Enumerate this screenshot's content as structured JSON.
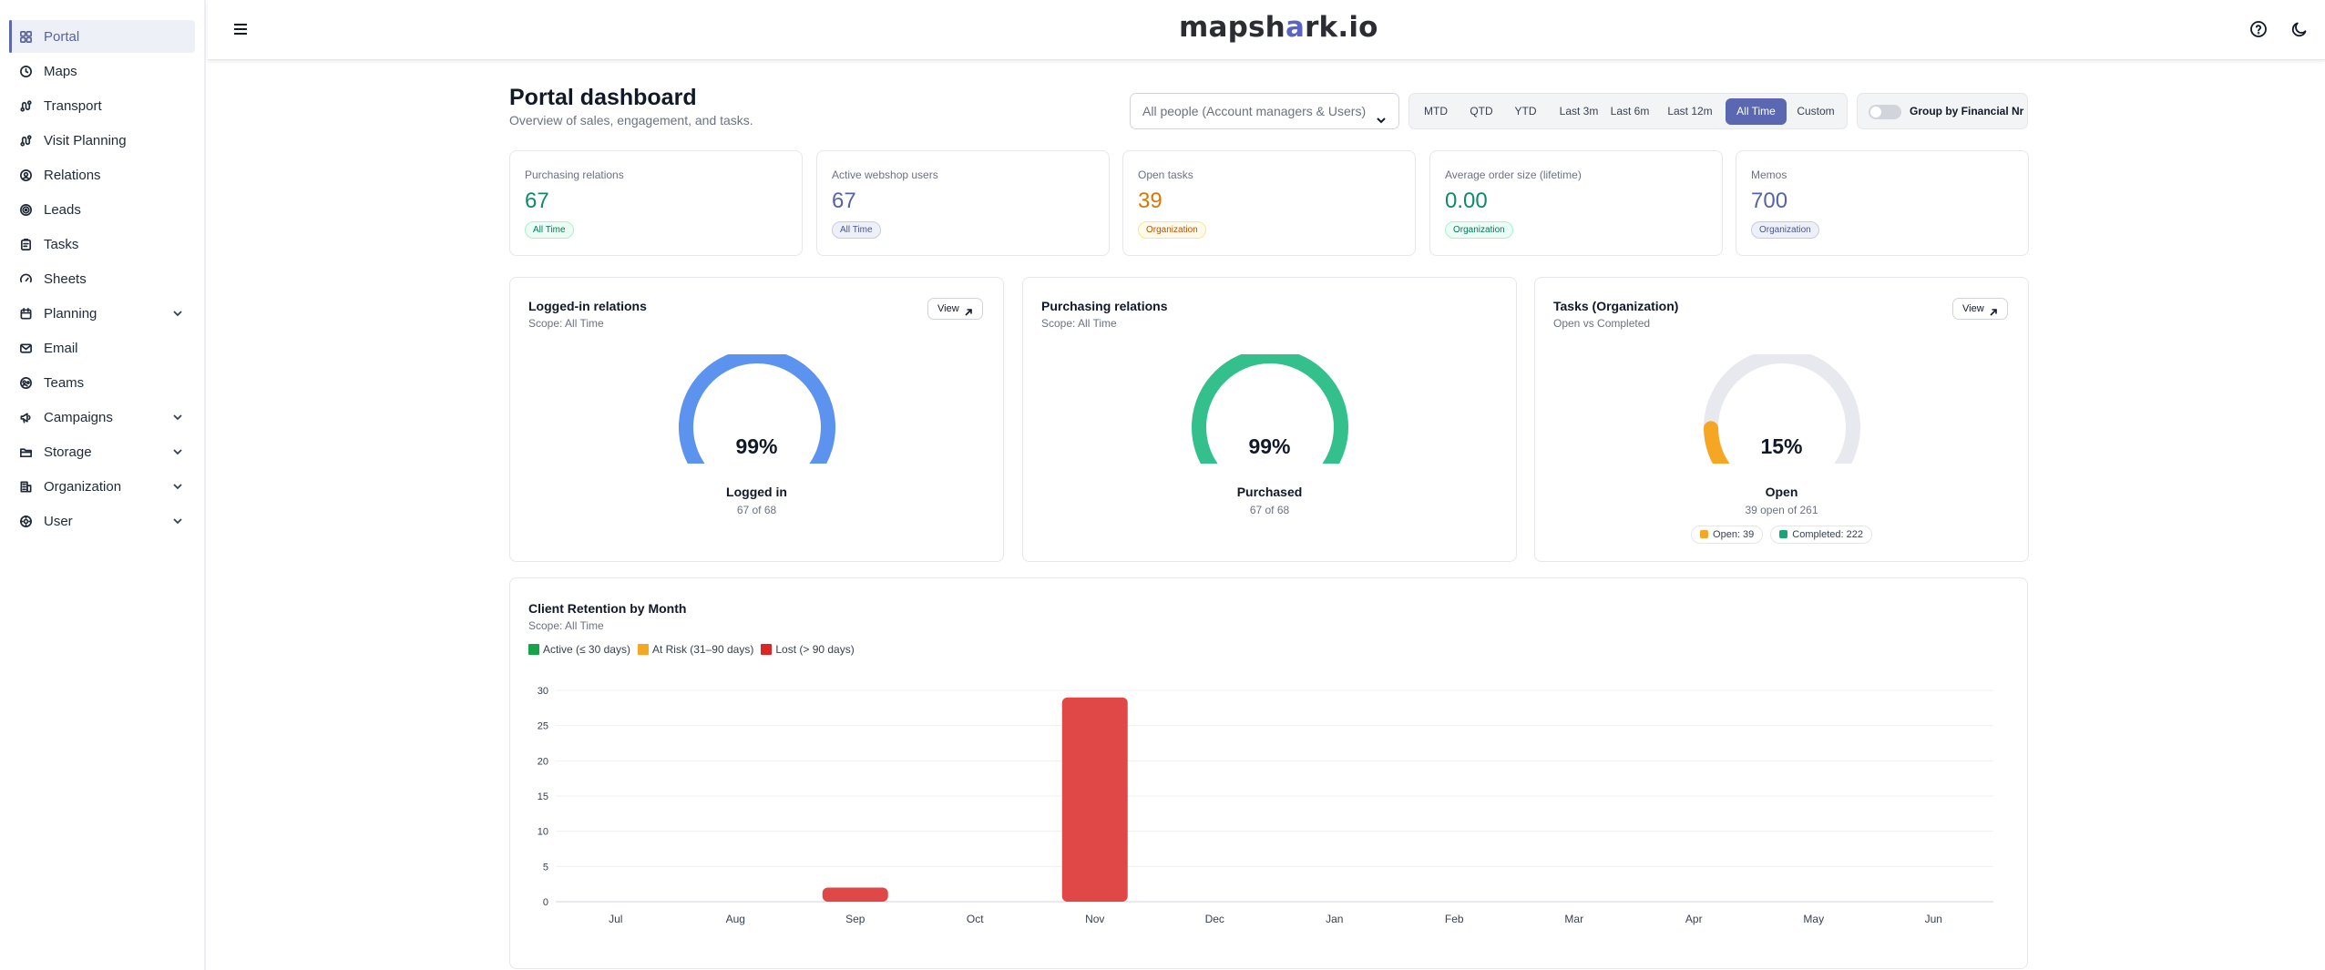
{
  "logo": {
    "pre": "mapsh",
    "accent": "a",
    "post": "rk.io"
  },
  "sidebar": {
    "items": [
      {
        "label": "Portal",
        "icon": "grid-icon",
        "active": true
      },
      {
        "label": "Maps",
        "icon": "map-pin-icon"
      },
      {
        "label": "Transport",
        "icon": "route-icon"
      },
      {
        "label": "Visit Planning",
        "icon": "route-icon"
      },
      {
        "label": "Relations",
        "icon": "relations-icon"
      },
      {
        "label": "Leads",
        "icon": "target-icon"
      },
      {
        "label": "Tasks",
        "icon": "clipboard-icon"
      },
      {
        "label": "Sheets",
        "icon": "gauge-icon"
      },
      {
        "label": "Planning",
        "icon": "calendar-icon",
        "expandable": true
      },
      {
        "label": "Email",
        "icon": "mail-icon"
      },
      {
        "label": "Teams",
        "icon": "teams-icon"
      },
      {
        "label": "Campaigns",
        "icon": "megaphone-icon",
        "expandable": true
      },
      {
        "label": "Storage",
        "icon": "folder-icon",
        "expandable": true
      },
      {
        "label": "Organization",
        "icon": "building-icon",
        "expandable": true
      },
      {
        "label": "User",
        "icon": "user-cog-icon",
        "expandable": true
      }
    ]
  },
  "header": {
    "title": "Portal dashboard",
    "subtitle": "Overview of sales, engagement, and tasks.",
    "people_select": "All people (Account managers & Users)",
    "ranges": [
      "MTD",
      "QTD",
      "YTD",
      "Last 3m",
      "Last 6m",
      "Last 12m",
      "All Time",
      "Custom"
    ],
    "active_range": "All Time",
    "group_toggle_label": "Group by Financial Nr",
    "group_toggle_on": false
  },
  "kpis": [
    {
      "label": "Purchasing relations",
      "value": "67",
      "tag": "All Time",
      "color": "#0f8a6a",
      "tag_bg": "#ecfdf5",
      "tag_border": "#a7f3d0",
      "tag_color": "#047857"
    },
    {
      "label": "Active webshop users",
      "value": "67",
      "tag": "All Time",
      "color": "#5663a6",
      "tag_bg": "#eef0f7",
      "tag_border": "#c7cbe6",
      "tag_color": "#4b5591"
    },
    {
      "label": "Open tasks",
      "value": "39",
      "tag": "Organization",
      "color": "#d97706",
      "tag_bg": "#fffbeb",
      "tag_border": "#fde68a",
      "tag_color": "#b45309"
    },
    {
      "label": "Average order size (lifetime)",
      "value": "0.00",
      "tag": "Organization",
      "color": "#0f8a6a",
      "tag_bg": "#ecfdf5",
      "tag_border": "#a7f3d0",
      "tag_color": "#047857"
    },
    {
      "label": "Memos",
      "value": "700",
      "tag": "Organization",
      "color": "#5663a6",
      "tag_bg": "#eef0f7",
      "tag_border": "#c7cbe6",
      "tag_color": "#4b5591"
    }
  ],
  "gauges": [
    {
      "title": "Logged-in relations",
      "subtitle": "Scope: All Time",
      "view": "View",
      "percent_text": "99%",
      "fraction": 0.99,
      "label": "Logged in",
      "detail": "67 of 68",
      "color": "#5b93ee"
    },
    {
      "title": "Purchasing relations",
      "subtitle": "Scope: All Time",
      "view": null,
      "percent_text": "99%",
      "fraction": 0.99,
      "label": "Purchased",
      "detail": "67 of 68",
      "color": "#34c08d"
    },
    {
      "title": "Tasks (Organization)",
      "subtitle": "Open vs Completed",
      "view": "View",
      "percent_text": "15%",
      "fraction": 0.15,
      "label": "Open",
      "detail": "39 open of 261",
      "color": "#f5a623",
      "legend": [
        {
          "label": "Open: 39",
          "color": "#f5a623"
        },
        {
          "label": "Completed: 222",
          "color": "#1aa37a"
        }
      ]
    }
  ],
  "colors": {
    "accent": "#5b67b0",
    "gauge_track": "#e8e9ee"
  },
  "retention": {
    "title": "Client Retention by Month",
    "subtitle": "Scope: All Time",
    "legend": [
      {
        "label": "Active (≤ 30 days)",
        "color": "#16a34a"
      },
      {
        "label": "At Risk (31–90 days)",
        "color": "#f5a623"
      },
      {
        "label": "Lost (> 90 days)",
        "color": "#dc2626"
      }
    ]
  },
  "chart_data": {
    "type": "bar",
    "title": "Client Retention by Month",
    "categories": [
      "Jul",
      "Aug",
      "Sep",
      "Oct",
      "Nov",
      "Dec",
      "Jan",
      "Feb",
      "Mar",
      "Apr",
      "May",
      "Jun"
    ],
    "series": [
      {
        "name": "Active (≤ 30 days)",
        "color": "#16a34a",
        "values": [
          0,
          0,
          0,
          0,
          0,
          0,
          0,
          0,
          0,
          0,
          0,
          0
        ]
      },
      {
        "name": "At Risk (31–90 days)",
        "color": "#f5a623",
        "values": [
          0,
          0,
          0,
          0,
          0,
          0,
          0,
          0,
          0,
          0,
          0,
          0
        ]
      },
      {
        "name": "Lost (> 90 days)",
        "color": "#e04848",
        "values": [
          0,
          0,
          2,
          0,
          29,
          0,
          0,
          0,
          0,
          0,
          0,
          0
        ]
      }
    ],
    "stacked": true,
    "ylim": [
      0,
      30
    ],
    "yticks": [
      0,
      5,
      10,
      15,
      20,
      25,
      30
    ],
    "grid": true
  }
}
